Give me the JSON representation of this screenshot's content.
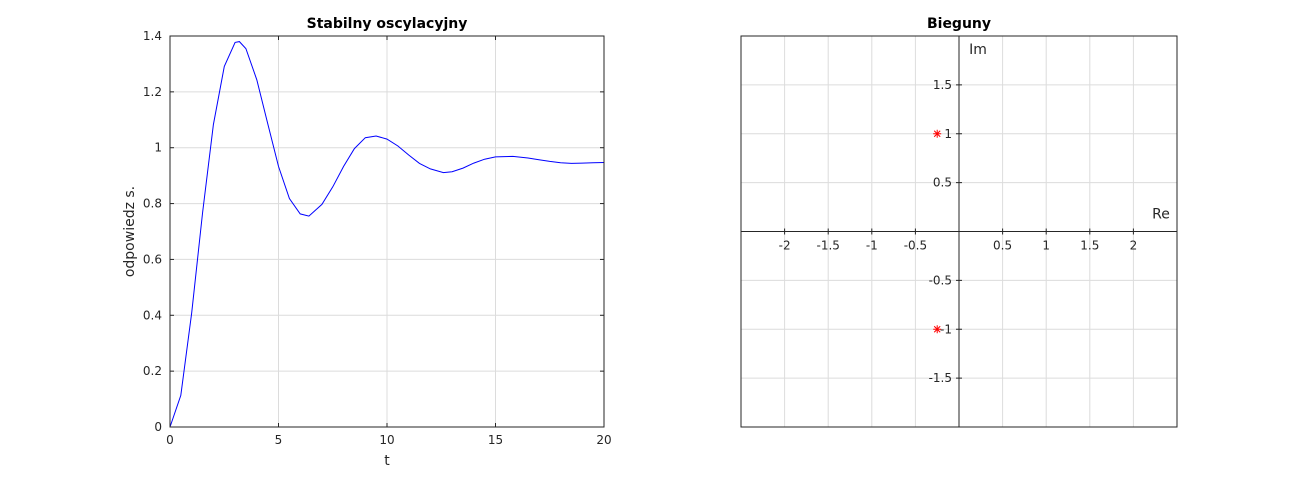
{
  "chart_data": [
    {
      "type": "line",
      "title": "Stabilny oscylacyjny",
      "xlabel": "t",
      "ylabel": "odpowiedz s.",
      "xlim": [
        0,
        20
      ],
      "ylim": [
        0,
        1.4
      ],
      "xticks": [
        0,
        5,
        10,
        15,
        20
      ],
      "xtick_labels": [
        "0",
        "5",
        "10",
        "15",
        "20"
      ],
      "yticks": [
        0,
        0.2,
        0.4,
        0.6,
        0.8,
        1.0,
        1.2,
        1.4
      ],
      "ytick_labels": [
        "0",
        "0.2",
        "0.4",
        "0.6",
        "0.8",
        "1",
        "1.2",
        "1.4"
      ],
      "grid": true,
      "series": [
        {
          "color": "#0000ff",
          "x": [
            0,
            0.5,
            1,
            1.5,
            2,
            2.5,
            3,
            3.2,
            3.5,
            4,
            4.5,
            5,
            5.5,
            6,
            6.4,
            7,
            7.5,
            8,
            8.5,
            9,
            9.5,
            10,
            10.5,
            11,
            11.5,
            12,
            12.6,
            13,
            13.5,
            14,
            14.5,
            15,
            15.8,
            16.5,
            17,
            17.5,
            18,
            18.5,
            19,
            19.5,
            20
          ],
          "y": [
            0,
            0.113,
            0.409,
            0.768,
            1.083,
            1.291,
            1.377,
            1.38,
            1.355,
            1.243,
            1.088,
            0.933,
            0.818,
            0.763,
            0.755,
            0.797,
            0.86,
            0.933,
            0.997,
            1.036,
            1.042,
            1.031,
            1.006,
            0.974,
            0.944,
            0.924,
            0.911,
            0.914,
            0.927,
            0.945,
            0.959,
            0.967,
            0.969,
            0.963,
            0.957,
            0.951,
            0.946,
            0.944,
            0.945,
            0.946,
            0.947
          ]
        }
      ]
    },
    {
      "type": "scatter",
      "title": "Bieguny",
      "xlabel": "Re",
      "ylabel": "Im",
      "xlim": [
        -2.5,
        2.5
      ],
      "ylim": [
        -2.0,
        2.0
      ],
      "xticks": [
        -2,
        -1.5,
        -1,
        -0.5,
        0.5,
        1,
        1.5,
        2
      ],
      "xtick_labels": [
        "-2",
        "-1.5",
        "-1",
        "-0.5",
        "0.5",
        "1",
        "1.5",
        "2"
      ],
      "yticks": [
        1.5,
        1,
        0.5,
        -0.5,
        -1,
        -1.5
      ],
      "ytick_labels": [
        "1.5",
        "1",
        "0.5",
        "-0.5",
        "-1",
        "-1.5"
      ],
      "grid": true,
      "points": [
        {
          "x": -0.25,
          "y": 1.0,
          "marker": "*",
          "color": "#ff0000"
        },
        {
          "x": -0.25,
          "y": -1.0,
          "marker": "*",
          "color": "#ff0000"
        }
      ]
    }
  ]
}
